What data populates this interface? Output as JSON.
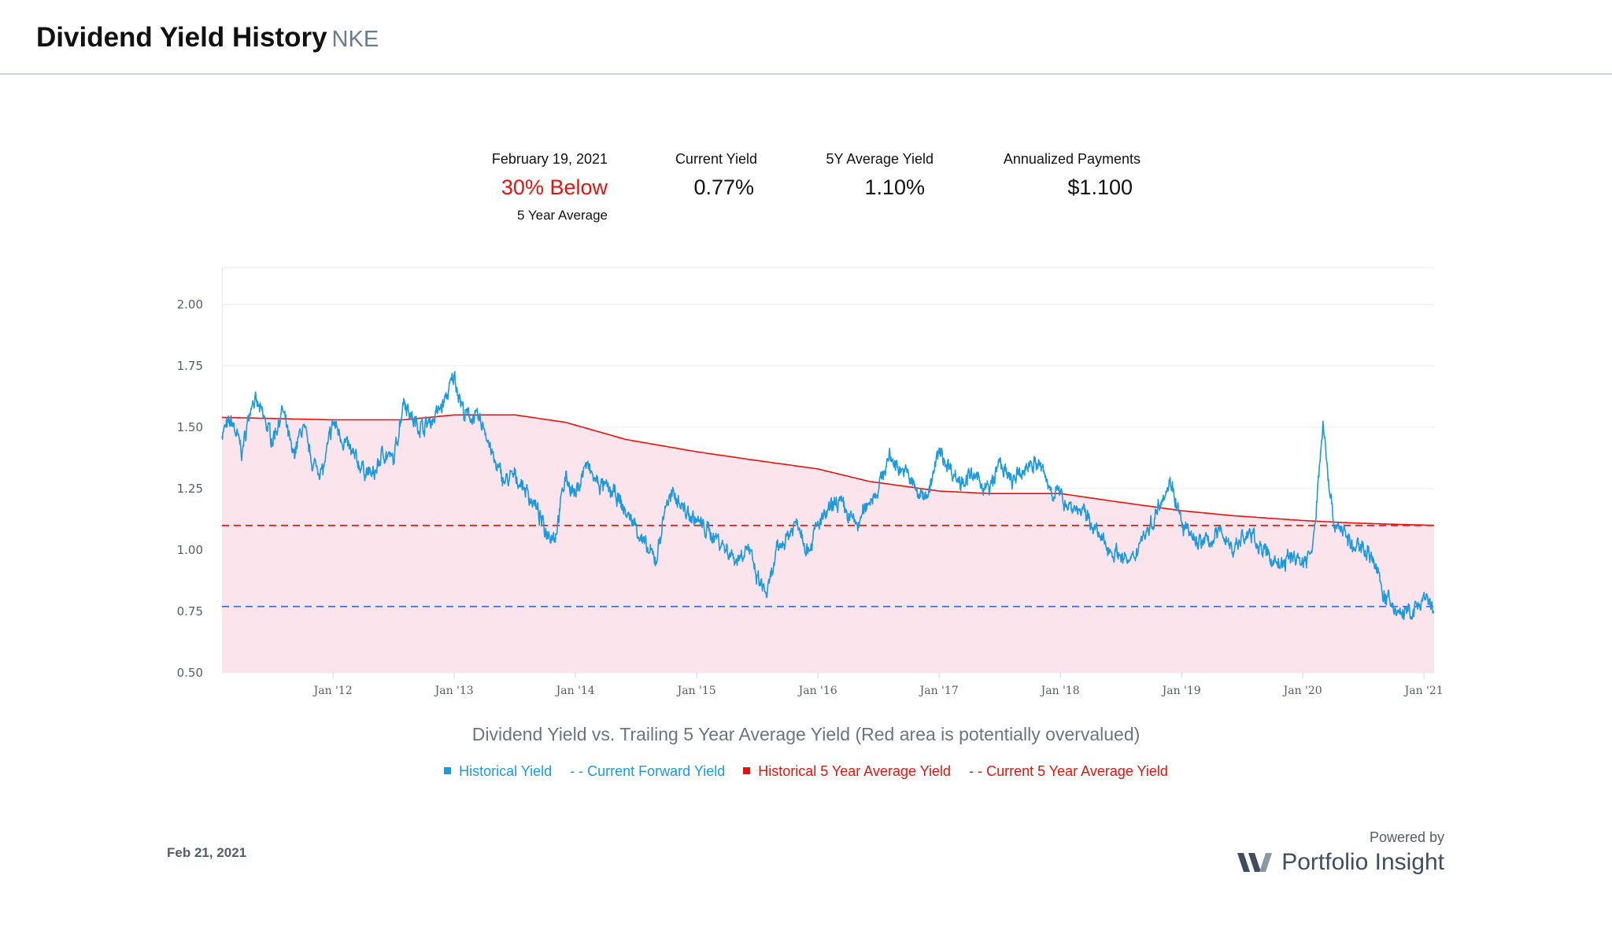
{
  "header": {
    "title": "Dividend Yield History",
    "ticker": "NKE"
  },
  "stats": {
    "date_label": "February 19, 2021",
    "valuation": "30% Below",
    "valuation_sub": "5 Year Average",
    "current_yield_label": "Current Yield",
    "current_yield": "0.77%",
    "avg_yield_label": "5Y Average Yield",
    "avg_yield": "1.10%",
    "payments_label": "Annualized Payments",
    "payments": "$1.100"
  },
  "colors": {
    "historical": "#1a9ae0",
    "forward": "#3b6fd8",
    "average": "#e8120c",
    "overvalued_fill": "#fce4ec",
    "legend_blue": "#1a9ae0",
    "legend_red": "#e8120c"
  },
  "chart_data": {
    "type": "line",
    "title": "Dividend Yield vs. Trailing 5 Year Average Yield (Red area is potentially overvalued)",
    "xlabel": "",
    "ylabel": "",
    "ylim": [
      0.5,
      2.15
    ],
    "x_range": [
      "2011-02",
      "2021-02"
    ],
    "y_ticks": [
      "0.50",
      "0.75",
      "1.00",
      "1.25",
      "1.50",
      "1.75",
      "2.00"
    ],
    "x_ticks": [
      {
        "date": "2012-01",
        "label": "Jan '12"
      },
      {
        "date": "2013-01",
        "label": "Jan '13"
      },
      {
        "date": "2014-01",
        "label": "Jan '14"
      },
      {
        "date": "2015-01",
        "label": "Jan '15"
      },
      {
        "date": "2016-01",
        "label": "Jan '16"
      },
      {
        "date": "2017-01",
        "label": "Jan '17"
      },
      {
        "date": "2018-01",
        "label": "Jan '18"
      },
      {
        "date": "2019-01",
        "label": "Jan '19"
      },
      {
        "date": "2020-01",
        "label": "Jan '20"
      },
      {
        "date": "2021-01",
        "label": "Jan '21"
      }
    ],
    "grid": true,
    "legend_position": "bottom",
    "series": [
      {
        "name": "Historical Yield",
        "x": [
          "2011-02",
          "2011-03",
          "2011-04",
          "2011-05",
          "2011-06",
          "2011-07",
          "2011-08",
          "2011-09",
          "2011-10",
          "2011-11",
          "2011-12",
          "2012-01",
          "2012-02",
          "2012-03",
          "2012-04",
          "2012-05",
          "2012-06",
          "2012-07",
          "2012-08",
          "2012-09",
          "2012-10",
          "2012-11",
          "2012-12",
          "2013-01",
          "2013-02",
          "2013-03",
          "2013-04",
          "2013-05",
          "2013-06",
          "2013-07",
          "2013-08",
          "2013-09",
          "2013-10",
          "2013-11",
          "2013-12",
          "2014-01",
          "2014-02",
          "2014-03",
          "2014-04",
          "2014-05",
          "2014-06",
          "2014-07",
          "2014-08",
          "2014-09",
          "2014-10",
          "2014-11",
          "2014-12",
          "2015-01",
          "2015-02",
          "2015-03",
          "2015-04",
          "2015-05",
          "2015-06",
          "2015-07",
          "2015-08",
          "2015-09",
          "2015-10",
          "2015-11",
          "2015-12",
          "2016-01",
          "2016-02",
          "2016-03",
          "2016-04",
          "2016-05",
          "2016-06",
          "2016-07",
          "2016-08",
          "2016-09",
          "2016-10",
          "2016-11",
          "2016-12",
          "2017-01",
          "2017-02",
          "2017-03",
          "2017-04",
          "2017-05",
          "2017-06",
          "2017-07",
          "2017-08",
          "2017-09",
          "2017-10",
          "2017-11",
          "2017-12",
          "2018-01",
          "2018-02",
          "2018-03",
          "2018-04",
          "2018-05",
          "2018-06",
          "2018-07",
          "2018-08",
          "2018-09",
          "2018-10",
          "2018-11",
          "2018-12",
          "2019-01",
          "2019-02",
          "2019-03",
          "2019-04",
          "2019-05",
          "2019-06",
          "2019-07",
          "2019-08",
          "2019-09",
          "2019-10",
          "2019-11",
          "2019-12",
          "2020-01",
          "2020-02",
          "2020-03",
          "2020-04",
          "2020-05",
          "2020-06",
          "2020-07",
          "2020-08",
          "2020-09",
          "2020-10",
          "2020-11",
          "2020-12",
          "2021-01",
          "2021-02"
        ],
        "values": [
          1.48,
          1.52,
          1.4,
          1.62,
          1.55,
          1.45,
          1.57,
          1.38,
          1.5,
          1.35,
          1.32,
          1.52,
          1.45,
          1.38,
          1.33,
          1.3,
          1.4,
          1.36,
          1.62,
          1.52,
          1.5,
          1.54,
          1.6,
          1.71,
          1.55,
          1.54,
          1.5,
          1.35,
          1.28,
          1.3,
          1.25,
          1.18,
          1.08,
          1.06,
          1.3,
          1.22,
          1.35,
          1.28,
          1.25,
          1.22,
          1.15,
          1.1,
          1.0,
          0.96,
          1.2,
          1.22,
          1.15,
          1.12,
          1.08,
          1.05,
          1.0,
          0.96,
          1.02,
          0.88,
          0.82,
          1.0,
          1.06,
          1.12,
          1.0,
          1.1,
          1.15,
          1.2,
          1.14,
          1.1,
          1.2,
          1.25,
          1.38,
          1.34,
          1.3,
          1.22,
          1.24,
          1.4,
          1.34,
          1.28,
          1.3,
          1.28,
          1.24,
          1.36,
          1.28,
          1.3,
          1.36,
          1.34,
          1.25,
          1.22,
          1.18,
          1.16,
          1.12,
          1.04,
          1.0,
          0.98,
          0.94,
          1.05,
          1.1,
          1.22,
          1.28,
          1.1,
          1.05,
          1.03,
          1.04,
          1.08,
          1.0,
          1.05,
          1.06,
          1.0,
          0.96,
          0.94,
          0.98,
          0.95,
          1.0,
          1.52,
          1.12,
          1.08,
          1.0,
          1.02,
          0.96,
          0.82,
          0.76,
          0.74,
          0.75,
          0.8,
          0.75
        ]
      },
      {
        "name": "Historical 5 Year Average Yield",
        "x": [
          "2011-02",
          "2012-01",
          "2012-08",
          "2013-01",
          "2013-07",
          "2013-12",
          "2014-06",
          "2015-01",
          "2015-06",
          "2016-01",
          "2016-06",
          "2017-01",
          "2017-06",
          "2018-01",
          "2018-06",
          "2019-01",
          "2019-06",
          "2020-01",
          "2020-06",
          "2021-02"
        ],
        "values": [
          1.54,
          1.53,
          1.53,
          1.55,
          1.55,
          1.52,
          1.45,
          1.4,
          1.37,
          1.33,
          1.28,
          1.24,
          1.23,
          1.23,
          1.2,
          1.16,
          1.14,
          1.12,
          1.11,
          1.1
        ]
      },
      {
        "name": "Current Forward Yield",
        "value": 0.77
      },
      {
        "name": "Current 5 Year Average Yield",
        "value": 1.1
      }
    ]
  },
  "legend": {
    "historical": "Historical Yield",
    "forward": "- - Current Forward Yield",
    "average": "Historical 5 Year Average Yield",
    "current_average": "- - Current 5 Year Average Yield"
  },
  "footer": {
    "date": "Feb 21, 2021",
    "powered_by": "Powered by",
    "brand": "Portfolio Insight",
    "brand_icon": "portfolio-insight-logo-icon"
  }
}
